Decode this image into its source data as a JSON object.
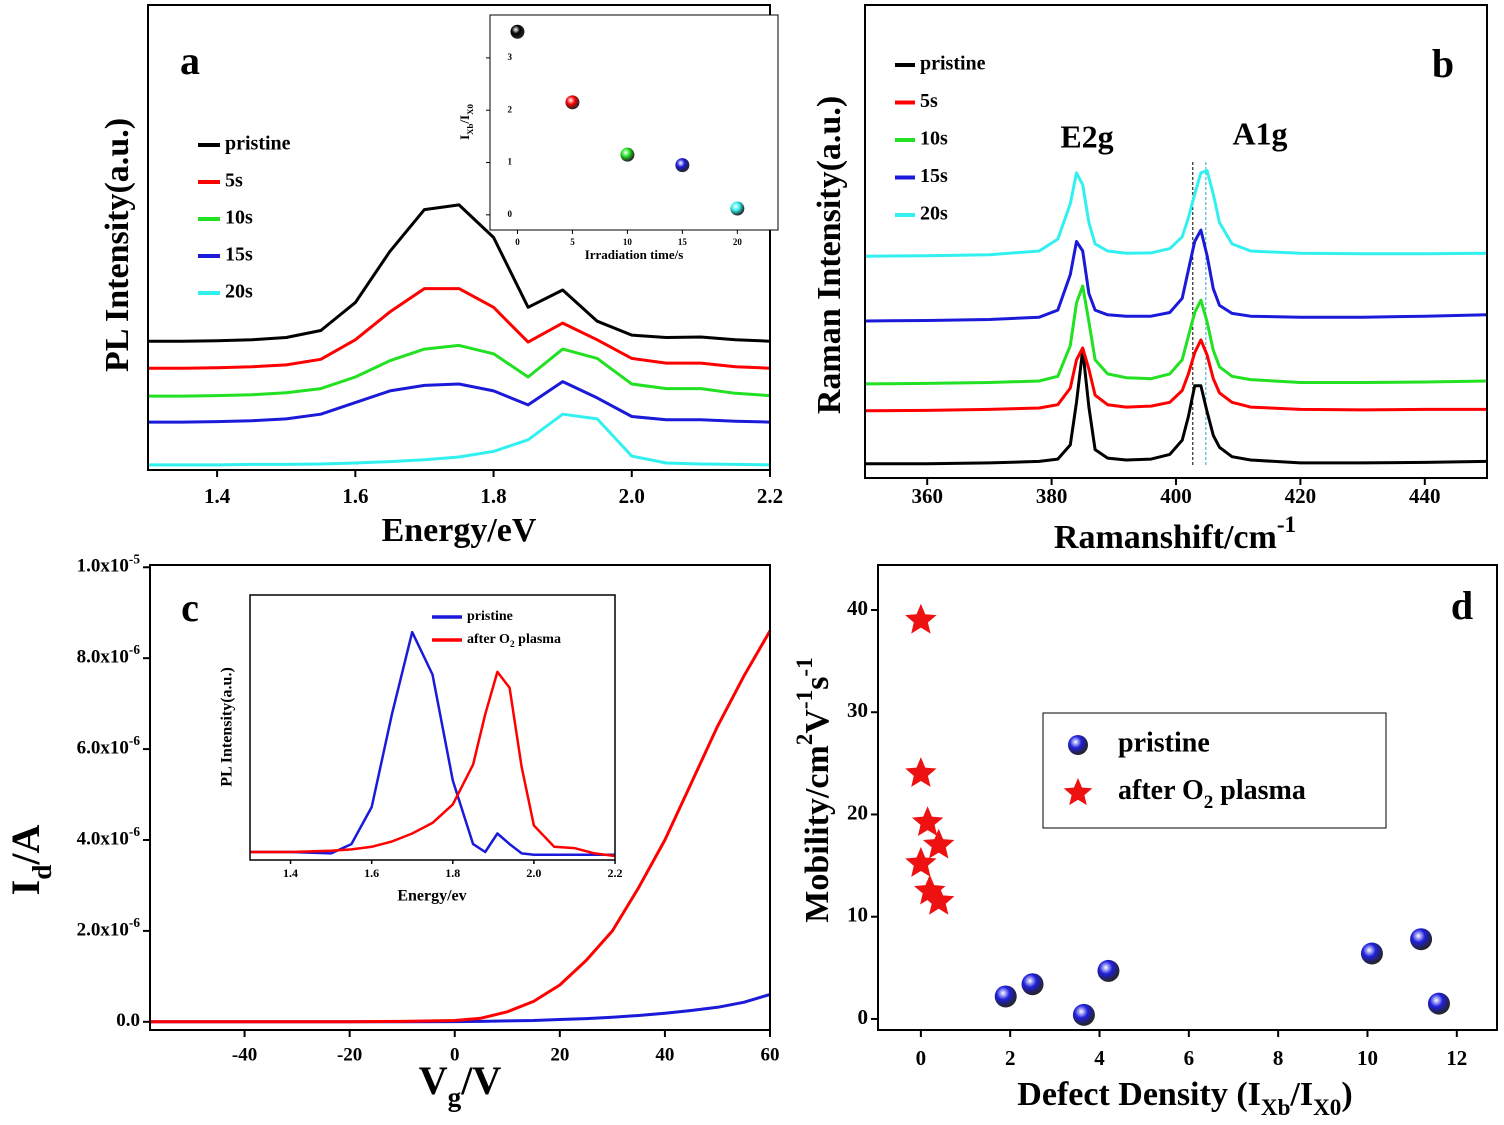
{
  "chart_data": [
    {
      "type": "line",
      "panel_label": "a",
      "xlabel": "Energy/eV",
      "ylabel": "PL Intensity(a.u.)",
      "xlim": [
        1.3,
        2.2
      ],
      "xticks": [
        1.4,
        1.6,
        1.8,
        {
          "value": 2,
          "label": "2.0"
        },
        2.2
      ],
      "ylim": [
        0,
        10
      ],
      "x": [
        1.3,
        1.35,
        1.4,
        1.45,
        1.5,
        1.55,
        1.6,
        1.65,
        1.7,
        1.75,
        1.8,
        1.85,
        1.9,
        1.95,
        2.0,
        2.05,
        2.1,
        2.15,
        2.2
      ],
      "series": [
        {
          "name": "pristine",
          "color": "#000000",
          "values": [
            2.77,
            2.77,
            2.78,
            2.8,
            2.85,
            3.0,
            3.6,
            4.7,
            5.6,
            5.7,
            5.0,
            3.5,
            3.87,
            3.2,
            2.9,
            2.85,
            2.86,
            2.8,
            2.77
          ]
        },
        {
          "name": "5s",
          "color": "#ff0000",
          "values": [
            2.19,
            2.19,
            2.2,
            2.22,
            2.26,
            2.38,
            2.8,
            3.4,
            3.9,
            3.9,
            3.5,
            2.75,
            3.16,
            2.8,
            2.4,
            2.3,
            2.3,
            2.22,
            2.19
          ]
        },
        {
          "name": "10s",
          "color": "#22e022",
          "values": [
            1.59,
            1.59,
            1.6,
            1.62,
            1.66,
            1.75,
            2.0,
            2.35,
            2.6,
            2.68,
            2.5,
            2.0,
            2.6,
            2.4,
            1.85,
            1.75,
            1.75,
            1.65,
            1.6
          ]
        },
        {
          "name": "15s",
          "color": "#1a1ad8",
          "values": [
            1.03,
            1.03,
            1.04,
            1.06,
            1.1,
            1.2,
            1.45,
            1.7,
            1.82,
            1.85,
            1.7,
            1.4,
            1.9,
            1.55,
            1.15,
            1.08,
            1.08,
            1.05,
            1.03
          ]
        },
        {
          "name": "20s",
          "color": "#33f0f0",
          "values": [
            0.11,
            0.11,
            0.11,
            0.12,
            0.12,
            0.13,
            0.15,
            0.18,
            0.22,
            0.28,
            0.4,
            0.65,
            1.2,
            1.1,
            0.3,
            0.15,
            0.13,
            0.12,
            0.11
          ]
        }
      ]
    },
    {
      "type": "scatter",
      "xlabel": "Irradiation time/s",
      "ylabel": [
        {
          "text": "I"
        },
        {
          "text": "Xb",
          "sub": true
        },
        {
          "text": "/I"
        },
        {
          "text": "X0",
          "sub": true
        }
      ],
      "xlim": [
        -2.5,
        23.7
      ],
      "xticks": [
        0,
        5,
        10,
        15,
        20
      ],
      "ylim": [
        -0.29,
        3.82
      ],
      "yticks": [
        0,
        1,
        2,
        3
      ],
      "series": [
        {
          "marker": "sphere",
          "x": [
            0,
            5,
            10,
            15,
            20
          ],
          "values": [
            3.5,
            2.15,
            1.15,
            0.95,
            0.12
          ],
          "colors": [
            "#000000",
            "#ff0000",
            "#22e022",
            "#1a1ad8",
            "#33f0f0"
          ]
        }
      ]
    },
    {
      "type": "line",
      "panel_label": "b",
      "xlabel": [
        {
          "text": "Ramanshift/cm"
        },
        {
          "text": "-1",
          "sup": true
        }
      ],
      "ylabel": "Raman Intensity(a.u.)",
      "annotations": [
        "E2g",
        "A1g"
      ],
      "reference_lines": [
        402.7,
        404.8
      ],
      "xlim": [
        350,
        450
      ],
      "xticks": [
        360,
        380,
        400,
        420,
        440
      ],
      "ylim": [
        0,
        10
      ],
      "x": [
        350,
        360,
        370,
        378,
        381,
        383,
        384,
        385,
        386,
        387,
        389,
        392,
        396,
        399,
        401,
        402,
        403,
        404,
        405,
        406,
        407,
        409,
        412,
        420,
        430,
        440,
        450
      ],
      "series": [
        {
          "name": "pristine",
          "color": "#000000",
          "values": [
            0.3,
            0.3,
            0.32,
            0.35,
            0.4,
            0.7,
            1.6,
            2.71,
            1.5,
            0.6,
            0.42,
            0.38,
            0.4,
            0.5,
            0.8,
            1.3,
            1.95,
            1.95,
            1.4,
            0.9,
            0.65,
            0.45,
            0.38,
            0.32,
            0.32,
            0.33,
            0.35
          ]
        },
        {
          "name": "5s",
          "color": "#ff0000",
          "values": [
            1.42,
            1.43,
            1.45,
            1.48,
            1.55,
            1.9,
            2.5,
            2.75,
            2.3,
            1.75,
            1.55,
            1.5,
            1.52,
            1.6,
            1.85,
            2.2,
            2.65,
            2.92,
            2.6,
            2.1,
            1.8,
            1.6,
            1.5,
            1.45,
            1.44,
            1.45,
            1.45
          ]
        },
        {
          "name": "10s",
          "color": "#22e022",
          "values": [
            1.99,
            2.0,
            2.02,
            2.05,
            2.15,
            2.8,
            3.7,
            4.06,
            3.3,
            2.5,
            2.2,
            2.12,
            2.1,
            2.2,
            2.5,
            3.0,
            3.5,
            3.76,
            3.3,
            2.7,
            2.35,
            2.15,
            2.08,
            2.02,
            2.02,
            2.03,
            2.05
          ]
        },
        {
          "name": "15s",
          "color": "#1a1ad8",
          "values": [
            3.32,
            3.33,
            3.35,
            3.4,
            3.55,
            4.3,
            5.0,
            4.8,
            3.9,
            3.55,
            3.45,
            3.42,
            3.42,
            3.5,
            3.8,
            4.4,
            5.0,
            5.24,
            4.7,
            4.0,
            3.65,
            3.48,
            3.42,
            3.4,
            3.4,
            3.42,
            3.45
          ]
        },
        {
          "name": "20s",
          "color": "#33f0f0",
          "values": [
            4.69,
            4.7,
            4.72,
            4.8,
            5.05,
            5.8,
            6.45,
            6.2,
            5.4,
            4.95,
            4.8,
            4.75,
            4.76,
            4.85,
            5.1,
            5.5,
            6.0,
            6.45,
            6.5,
            6.0,
            5.4,
            4.95,
            4.8,
            4.75,
            4.74,
            4.74,
            4.75
          ]
        }
      ]
    },
    {
      "type": "line",
      "panel_label": "c",
      "xlabel": [
        {
          "text": "V"
        },
        {
          "text": "g",
          "sub": true
        },
        {
          "text": "/V"
        }
      ],
      "ylabel": [
        {
          "text": "I"
        },
        {
          "text": "d",
          "sub": true
        },
        {
          "text": "/A"
        }
      ],
      "xlim": [
        -58,
        60
      ],
      "xticks": [
        -40,
        -20,
        0,
        20,
        40,
        60
      ],
      "ylim": [
        -1.8e-07,
        1.005e-05
      ],
      "yticks": [
        {
          "value": 0,
          "label": "0.0"
        },
        {
          "value": 2e-06,
          "label": "2.0x10",
          "exp": "-6"
        },
        {
          "value": 4e-06,
          "label": "4.0x10",
          "exp": "-6"
        },
        {
          "value": 6e-06,
          "label": "6.0x10",
          "exp": "-6"
        },
        {
          "value": 8e-06,
          "label": "8.0x10",
          "exp": "-6"
        },
        {
          "value": 1e-05,
          "label": "1.0x10",
          "exp": "-5"
        }
      ],
      "x": [
        -58,
        -40,
        -20,
        -10,
        0,
        5,
        10,
        15,
        20,
        25,
        30,
        35,
        40,
        45,
        50,
        55,
        60
      ],
      "series": [
        {
          "color": "#1a1ad8",
          "values": [
            0,
            0,
            0,
            0,
            5e-09,
            1e-08,
            2e-08,
            3e-08,
            5e-08,
            7e-08,
            1e-07,
            1.4e-07,
            1.9e-07,
            2.5e-07,
            3.2e-07,
            4.3e-07,
            6e-07
          ]
        },
        {
          "color": "#ff0000",
          "values": [
            0,
            0,
            0,
            1e-08,
            3e-08,
            8e-08,
            2.2e-07,
            4.5e-07,
            8.1e-07,
            1.35e-06,
            2e-06,
            2.95e-06,
            4e-06,
            5.25e-06,
            6.5e-06,
            7.6e-06,
            8.6e-06
          ]
        }
      ]
    },
    {
      "type": "line",
      "xlabel": "Energy/ev",
      "ylabel": "PL Intensity(a.u.)",
      "xlim": [
        1.3,
        2.2
      ],
      "xticks": [
        1.4,
        1.6,
        1.8,
        {
          "value": 2,
          "label": "2.0"
        },
        2.2
      ],
      "ylim": [
        0,
        10
      ],
      "x": [
        1.3,
        1.4,
        1.5,
        1.55,
        1.6,
        1.65,
        1.7,
        1.75,
        1.8,
        1.85,
        1.88,
        1.91,
        1.94,
        1.97,
        2.0,
        2.05,
        2.1,
        2.15,
        2.2
      ],
      "series": [
        {
          "name": "pristine",
          "color": "#1a1ad8",
          "values": [
            0.3,
            0.3,
            0.25,
            0.6,
            2.0,
            5.5,
            8.6,
            7.0,
            3.0,
            0.6,
            0.3,
            1.0,
            0.6,
            0.25,
            0.2,
            0.2,
            0.2,
            0.2,
            0.2
          ]
        },
        {
          "name": [
            {
              "text": "after O"
            },
            {
              "text": "2",
              "sub": true
            },
            {
              "text": " plasma"
            }
          ],
          "color": "#ff0000",
          "values": [
            0.3,
            0.3,
            0.35,
            0.4,
            0.5,
            0.7,
            1.0,
            1.4,
            2.1,
            3.6,
            5.5,
            7.1,
            6.5,
            3.5,
            1.3,
            0.5,
            0.45,
            0.25,
            0.15
          ]
        }
      ]
    },
    {
      "type": "scatter",
      "panel_label": "d",
      "xlabel": [
        {
          "text": "Defect Density (I"
        },
        {
          "text": "Xb",
          "sub": true
        },
        {
          "text": "/I"
        },
        {
          "text": "X0",
          "sub": true
        },
        {
          "text": ")"
        }
      ],
      "ylabel": [
        {
          "text": "Mobility/cm"
        },
        {
          "text": "2",
          "sup": true
        },
        {
          "text": "V"
        },
        {
          "text": "-1",
          "sup": true
        },
        {
          "text": "s"
        },
        {
          "text": "-1",
          "sup": true
        }
      ],
      "xlim": [
        -0.96,
        12.9
      ],
      "xticks": [
        0,
        2,
        4,
        6,
        8,
        10,
        12
      ],
      "ylim": [
        -1.08,
        44.4
      ],
      "yticks": [
        0,
        10,
        20,
        30,
        40
      ],
      "series": [
        {
          "name": "pristine",
          "marker": "sphere",
          "color": "#2020e0",
          "x": [
            1.9,
            2.5,
            3.65,
            4.2,
            10.1,
            11.2,
            11.6
          ],
          "values": [
            2.2,
            3.4,
            0.4,
            4.7,
            6.4,
            7.8,
            1.5
          ]
        },
        {
          "name": [
            {
              "text": "after O"
            },
            {
              "text": "2",
              "sub": true
            },
            {
              "text": " plasma"
            }
          ],
          "marker": "star",
          "color": "#ee1111",
          "x": [
            0,
            0,
            0.15,
            0.4,
            0,
            0.2,
            0.4
          ],
          "values": [
            39,
            24,
            19.2,
            17,
            15.2,
            12.5,
            11.5
          ]
        }
      ]
    }
  ]
}
